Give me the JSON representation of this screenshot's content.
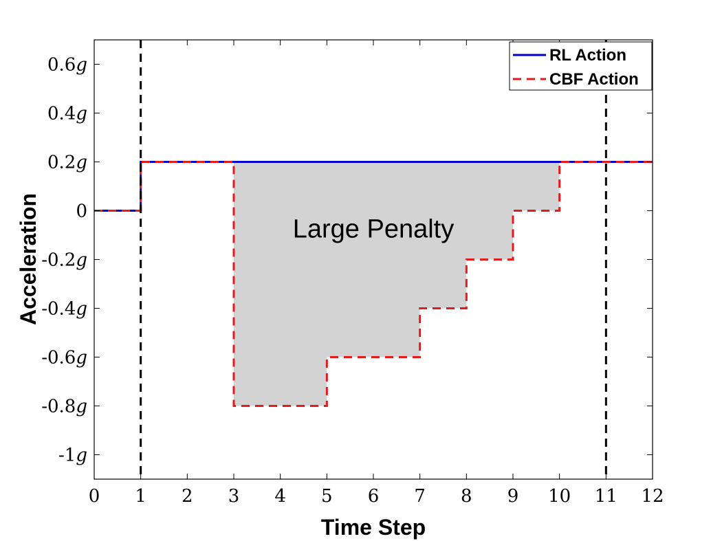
{
  "chart_data": {
    "type": "line",
    "title": "",
    "xlabel": "Time Step",
    "ylabel": "Acceleration",
    "xlim": [
      0,
      12
    ],
    "ylim": [
      -1.1,
      0.7
    ],
    "x_ticks": [
      0,
      1,
      2,
      3,
      4,
      5,
      6,
      7,
      8,
      9,
      10,
      11,
      12
    ],
    "x_tick_labels": [
      "0",
      "1",
      "2",
      "3",
      "4",
      "5",
      "6",
      "7",
      "8",
      "9",
      "10",
      "11",
      "12"
    ],
    "y_ticks": [
      0.6,
      0.4,
      0.2,
      0,
      -0.2,
      -0.4,
      -0.6,
      -0.8,
      -1.0
    ],
    "y_tick_labels": [
      "0.6g",
      "0.4g",
      "0.2g",
      "0",
      "-0.2g",
      "-0.4g",
      "-0.6g",
      "-0.8g",
      "-1g"
    ],
    "grid": false,
    "legend_position": "top-right",
    "series": [
      {
        "name": "RL Action",
        "color": "#0000cc",
        "style": "solid",
        "step": true,
        "x": [
          0,
          1,
          12
        ],
        "y": [
          0,
          0.2,
          0.2
        ]
      },
      {
        "name": "CBF Action",
        "color": "#e41a1c",
        "style": "dashed",
        "step": true,
        "x": [
          0,
          1,
          3,
          5,
          7,
          8,
          9,
          10,
          12
        ],
        "y": [
          0,
          0.2,
          -0.8,
          -0.6,
          -0.4,
          -0.2,
          0,
          0.2,
          0.2
        ]
      }
    ],
    "vertical_lines": [
      {
        "x": 1,
        "color": "#000000",
        "style": "dashed"
      },
      {
        "x": 11,
        "color": "#000000",
        "style": "dashed"
      }
    ],
    "shaded_region": {
      "label": "Large Penalty",
      "color": "#d3d3d3",
      "upper": 0.2,
      "x_start": 3,
      "x_end": 10
    },
    "annotations": [
      {
        "text": "Large Penalty",
        "x": 6,
        "y": -0.11
      }
    ]
  }
}
